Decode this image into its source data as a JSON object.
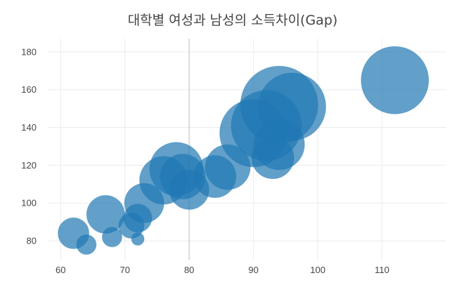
{
  "chart_data": {
    "type": "scatter",
    "title": "대학별 여성과 남성의 소득차이(Gap)",
    "xlabel": "",
    "ylabel": "",
    "xlim": [
      58,
      120
    ],
    "ylim": [
      70,
      187
    ],
    "x_ticks": [
      60,
      70,
      80,
      90,
      100,
      110
    ],
    "y_ticks": [
      80,
      100,
      120,
      140,
      160,
      180
    ],
    "grid": true,
    "marker_color": "#1f77b4",
    "marker_opacity": 0.7,
    "series": [
      {
        "points": [
          {
            "x": 62,
            "y": 84,
            "size": 22
          },
          {
            "x": 64,
            "y": 78,
            "size": 14
          },
          {
            "x": 67,
            "y": 94,
            "size": 27
          },
          {
            "x": 68,
            "y": 82,
            "size": 14
          },
          {
            "x": 71,
            "y": 88,
            "size": 18
          },
          {
            "x": 72,
            "y": 92,
            "size": 20
          },
          {
            "x": 72,
            "y": 81,
            "size": 9
          },
          {
            "x": 73,
            "y": 100,
            "size": 28
          },
          {
            "x": 76,
            "y": 112,
            "size": 34
          },
          {
            "x": 78,
            "y": 118,
            "size": 38
          },
          {
            "x": 79,
            "y": 114,
            "size": 32
          },
          {
            "x": 80,
            "y": 107,
            "size": 28
          },
          {
            "x": 84,
            "y": 114,
            "size": 30
          },
          {
            "x": 86,
            "y": 119,
            "size": 32
          },
          {
            "x": 90,
            "y": 137,
            "size": 48
          },
          {
            "x": 92,
            "y": 141,
            "size": 50
          },
          {
            "x": 93,
            "y": 124,
            "size": 30
          },
          {
            "x": 94,
            "y": 131,
            "size": 36
          },
          {
            "x": 94,
            "y": 152,
            "size": 55
          },
          {
            "x": 96,
            "y": 151,
            "size": 48
          },
          {
            "x": 112,
            "y": 165,
            "size": 48
          }
        ]
      }
    ]
  }
}
